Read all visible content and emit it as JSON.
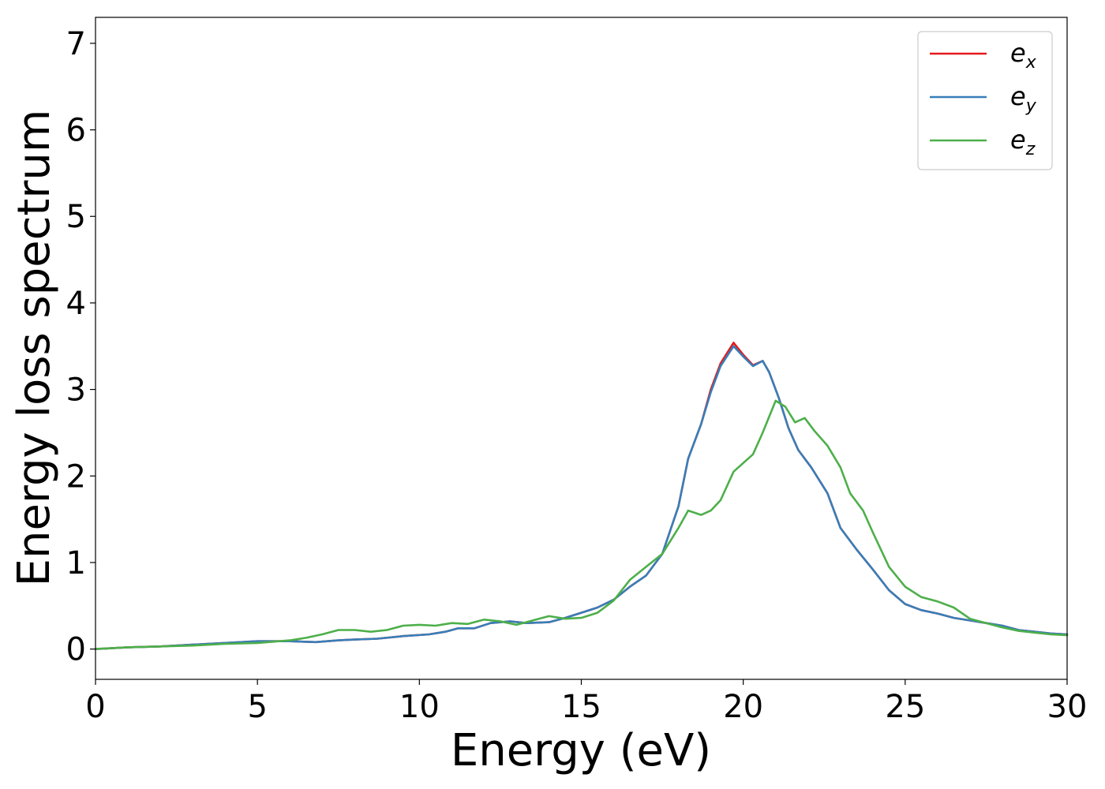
{
  "chart_data": {
    "type": "line",
    "xlabel": "Energy (eV)",
    "ylabel": "Energy loss spectrum",
    "xlim": [
      0,
      30
    ],
    "ylim": [
      -0.35,
      7.3
    ],
    "xticks": [
      "0",
      "5",
      "10",
      "15",
      "20",
      "25",
      "30"
    ],
    "yticks": [
      "0",
      "1",
      "2",
      "3",
      "4",
      "5",
      "6",
      "7"
    ],
    "grid": false,
    "legend_position": "top-right",
    "series": [
      {
        "name": "e_x",
        "legend_base": "e",
        "legend_sub": "x",
        "color": "#e41a1c",
        "points": [
          [
            0,
            0.0
          ],
          [
            1,
            0.02
          ],
          [
            2,
            0.03
          ],
          [
            3,
            0.05
          ],
          [
            4,
            0.07
          ],
          [
            5,
            0.09
          ],
          [
            6,
            0.09
          ],
          [
            6.8,
            0.08
          ],
          [
            7.5,
            0.1
          ],
          [
            8,
            0.11
          ],
          [
            8.7,
            0.12
          ],
          [
            9.5,
            0.15
          ],
          [
            10.3,
            0.17
          ],
          [
            10.8,
            0.2
          ],
          [
            11.2,
            0.24
          ],
          [
            11.7,
            0.24
          ],
          [
            12.2,
            0.3
          ],
          [
            12.8,
            0.32
          ],
          [
            13.3,
            0.3
          ],
          [
            14,
            0.31
          ],
          [
            14.5,
            0.36
          ],
          [
            15,
            0.42
          ],
          [
            15.5,
            0.48
          ],
          [
            16,
            0.57
          ],
          [
            16.5,
            0.72
          ],
          [
            17,
            0.85
          ],
          [
            17.5,
            1.1
          ],
          [
            18,
            1.65
          ],
          [
            18.3,
            2.2
          ],
          [
            18.7,
            2.6
          ],
          [
            19,
            3.0
          ],
          [
            19.3,
            3.3
          ],
          [
            19.7,
            3.54
          ],
          [
            20,
            3.4
          ],
          [
            20.3,
            3.28
          ],
          [
            20.6,
            3.33
          ],
          [
            20.8,
            3.2
          ],
          [
            21.1,
            2.9
          ],
          [
            21.4,
            2.55
          ],
          [
            21.7,
            2.3
          ],
          [
            22.1,
            2.1
          ],
          [
            22.6,
            1.8
          ],
          [
            23,
            1.4
          ],
          [
            23.5,
            1.15
          ],
          [
            24,
            0.92
          ],
          [
            24.5,
            0.68
          ],
          [
            25,
            0.52
          ],
          [
            25.5,
            0.45
          ],
          [
            26,
            0.41
          ],
          [
            26.5,
            0.36
          ],
          [
            27,
            0.33
          ],
          [
            27.5,
            0.3
          ],
          [
            28,
            0.27
          ],
          [
            28.5,
            0.22
          ],
          [
            29,
            0.2
          ],
          [
            29.5,
            0.18
          ],
          [
            30,
            0.17
          ]
        ]
      },
      {
        "name": "e_y",
        "legend_base": "e",
        "legend_sub": "y",
        "color": "#377eb8",
        "points": [
          [
            0,
            0.0
          ],
          [
            1,
            0.02
          ],
          [
            2,
            0.03
          ],
          [
            3,
            0.05
          ],
          [
            4,
            0.07
          ],
          [
            5,
            0.09
          ],
          [
            6,
            0.09
          ],
          [
            6.8,
            0.08
          ],
          [
            7.5,
            0.1
          ],
          [
            8,
            0.11
          ],
          [
            8.7,
            0.12
          ],
          [
            9.5,
            0.15
          ],
          [
            10.3,
            0.17
          ],
          [
            10.8,
            0.2
          ],
          [
            11.2,
            0.24
          ],
          [
            11.7,
            0.24
          ],
          [
            12.2,
            0.3
          ],
          [
            12.8,
            0.32
          ],
          [
            13.3,
            0.3
          ],
          [
            14,
            0.31
          ],
          [
            14.5,
            0.36
          ],
          [
            15,
            0.42
          ],
          [
            15.5,
            0.48
          ],
          [
            16,
            0.57
          ],
          [
            16.5,
            0.72
          ],
          [
            17,
            0.85
          ],
          [
            17.5,
            1.1
          ],
          [
            18,
            1.65
          ],
          [
            18.3,
            2.2
          ],
          [
            18.7,
            2.6
          ],
          [
            19,
            2.97
          ],
          [
            19.3,
            3.27
          ],
          [
            19.7,
            3.5
          ],
          [
            20,
            3.38
          ],
          [
            20.3,
            3.27
          ],
          [
            20.6,
            3.33
          ],
          [
            20.8,
            3.2
          ],
          [
            21.1,
            2.9
          ],
          [
            21.4,
            2.55
          ],
          [
            21.7,
            2.3
          ],
          [
            22.1,
            2.1
          ],
          [
            22.6,
            1.8
          ],
          [
            23,
            1.4
          ],
          [
            23.5,
            1.15
          ],
          [
            24,
            0.92
          ],
          [
            24.5,
            0.68
          ],
          [
            25,
            0.52
          ],
          [
            25.5,
            0.45
          ],
          [
            26,
            0.41
          ],
          [
            26.5,
            0.36
          ],
          [
            27,
            0.33
          ],
          [
            27.5,
            0.3
          ],
          [
            28,
            0.27
          ],
          [
            28.5,
            0.22
          ],
          [
            29,
            0.2
          ],
          [
            29.5,
            0.18
          ],
          [
            30,
            0.17
          ]
        ]
      },
      {
        "name": "e_z",
        "legend_base": "e",
        "legend_sub": "z",
        "color": "#4daf4a",
        "points": [
          [
            0,
            0.0
          ],
          [
            1,
            0.02
          ],
          [
            2,
            0.03
          ],
          [
            3,
            0.04
          ],
          [
            4,
            0.06
          ],
          [
            5,
            0.07
          ],
          [
            6,
            0.1
          ],
          [
            6.5,
            0.13
          ],
          [
            7,
            0.17
          ],
          [
            7.5,
            0.22
          ],
          [
            8,
            0.22
          ],
          [
            8.5,
            0.2
          ],
          [
            9,
            0.22
          ],
          [
            9.5,
            0.27
          ],
          [
            10,
            0.28
          ],
          [
            10.5,
            0.27
          ],
          [
            11,
            0.3
          ],
          [
            11.5,
            0.29
          ],
          [
            12,
            0.34
          ],
          [
            12.5,
            0.32
          ],
          [
            13,
            0.28
          ],
          [
            13.5,
            0.33
          ],
          [
            14,
            0.38
          ],
          [
            14.5,
            0.35
          ],
          [
            15,
            0.36
          ],
          [
            15.5,
            0.42
          ],
          [
            16,
            0.56
          ],
          [
            16.5,
            0.8
          ],
          [
            17,
            0.95
          ],
          [
            17.5,
            1.1
          ],
          [
            18,
            1.4
          ],
          [
            18.3,
            1.6
          ],
          [
            18.7,
            1.55
          ],
          [
            19,
            1.6
          ],
          [
            19.3,
            1.72
          ],
          [
            19.7,
            2.05
          ],
          [
            20,
            2.15
          ],
          [
            20.3,
            2.25
          ],
          [
            20.6,
            2.5
          ],
          [
            21,
            2.87
          ],
          [
            21.3,
            2.8
          ],
          [
            21.6,
            2.62
          ],
          [
            21.9,
            2.67
          ],
          [
            22.2,
            2.52
          ],
          [
            22.6,
            2.35
          ],
          [
            23,
            2.1
          ],
          [
            23.3,
            1.8
          ],
          [
            23.7,
            1.6
          ],
          [
            24,
            1.35
          ],
          [
            24.5,
            0.95
          ],
          [
            25,
            0.72
          ],
          [
            25.5,
            0.6
          ],
          [
            26,
            0.55
          ],
          [
            26.5,
            0.48
          ],
          [
            27,
            0.35
          ],
          [
            27.5,
            0.3
          ],
          [
            28,
            0.25
          ],
          [
            28.5,
            0.21
          ],
          [
            29,
            0.19
          ],
          [
            29.5,
            0.17
          ],
          [
            30,
            0.16
          ]
        ]
      }
    ]
  }
}
